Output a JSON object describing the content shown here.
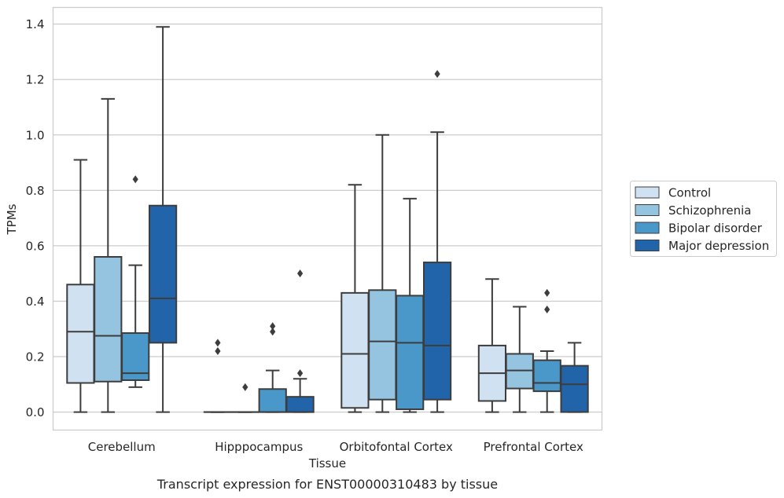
{
  "chart_data": {
    "type": "box",
    "title": "Transcript expression for ENST00000310483 by tissue",
    "xlabel": "Tissue",
    "ylabel": "TPMs",
    "ylim": [
      -0.065,
      1.46
    ],
    "yticks": [
      "0.0",
      "0.2",
      "0.4",
      "0.6",
      "0.8",
      "1.0",
      "1.2",
      "1.4"
    ],
    "ytick_values": [
      0,
      0.2,
      0.4,
      0.6,
      0.8,
      1.0,
      1.2,
      1.4
    ],
    "grid": true,
    "legend_position": "right",
    "categories": [
      "Cerebellum",
      "Hipppocampus",
      "Orbitofontal Cortex",
      "Prefrontal Cortex"
    ],
    "series": [
      {
        "name": "Control",
        "color": "#d0e1f2",
        "boxes": [
          {
            "whislo": 0.0,
            "q1": 0.105,
            "med": 0.29,
            "q3": 0.46,
            "whishi": 0.91,
            "fliers": []
          },
          {
            "whislo": 0.0,
            "q1": 0.0,
            "med": 0.0,
            "q3": 0.0,
            "whishi": 0.0,
            "fliers": [
              0.22,
              0.25
            ]
          },
          {
            "whislo": 0.0,
            "q1": 0.015,
            "med": 0.21,
            "q3": 0.43,
            "whishi": 0.82,
            "fliers": []
          },
          {
            "whislo": 0.0,
            "q1": 0.04,
            "med": 0.14,
            "q3": 0.24,
            "whishi": 0.48,
            "fliers": []
          }
        ]
      },
      {
        "name": "Schizophrenia",
        "color": "#94c4df",
        "boxes": [
          {
            "whislo": 0.0,
            "q1": 0.11,
            "med": 0.275,
            "q3": 0.56,
            "whishi": 1.13,
            "fliers": []
          },
          {
            "whislo": 0.0,
            "q1": 0.0,
            "med": 0.0,
            "q3": 0.0,
            "whishi": 0.0,
            "fliers": [
              0.09
            ]
          },
          {
            "whislo": 0.0,
            "q1": 0.045,
            "med": 0.255,
            "q3": 0.44,
            "whishi": 1.0,
            "fliers": []
          },
          {
            "whislo": 0.0,
            "q1": 0.085,
            "med": 0.15,
            "q3": 0.21,
            "whishi": 0.38,
            "fliers": []
          }
        ]
      },
      {
        "name": "Bipolar disorder",
        "color": "#4a98c9",
        "boxes": [
          {
            "whislo": 0.09,
            "q1": 0.115,
            "med": 0.14,
            "q3": 0.285,
            "whishi": 0.53,
            "fliers": [
              0.84
            ]
          },
          {
            "whislo": 0.0,
            "q1": 0.0,
            "med": 0.0,
            "q3": 0.083,
            "whishi": 0.15,
            "fliers": [
              0.29,
              0.31
            ]
          },
          {
            "whislo": 0.0,
            "q1": 0.01,
            "med": 0.25,
            "q3": 0.42,
            "whishi": 0.77,
            "fliers": []
          },
          {
            "whislo": 0.0,
            "q1": 0.075,
            "med": 0.105,
            "q3": 0.187,
            "whishi": 0.22,
            "fliers": [
              0.37,
              0.43
            ]
          }
        ]
      },
      {
        "name": "Major depression",
        "color": "#2264aa",
        "boxes": [
          {
            "whislo": 0.0,
            "q1": 0.25,
            "med": 0.41,
            "q3": 0.745,
            "whishi": 1.39,
            "fliers": []
          },
          {
            "whislo": 0.0,
            "q1": 0.0,
            "med": 0.0,
            "q3": 0.055,
            "whishi": 0.12,
            "fliers": [
              0.14,
              0.5
            ]
          },
          {
            "whislo": 0.0,
            "q1": 0.045,
            "med": 0.24,
            "q3": 0.54,
            "whishi": 1.01,
            "fliers": [
              1.22
            ]
          },
          {
            "whislo": 0.0,
            "q1": 0.0,
            "med": 0.1,
            "q3": 0.167,
            "whishi": 0.25,
            "fliers": []
          }
        ]
      }
    ]
  }
}
